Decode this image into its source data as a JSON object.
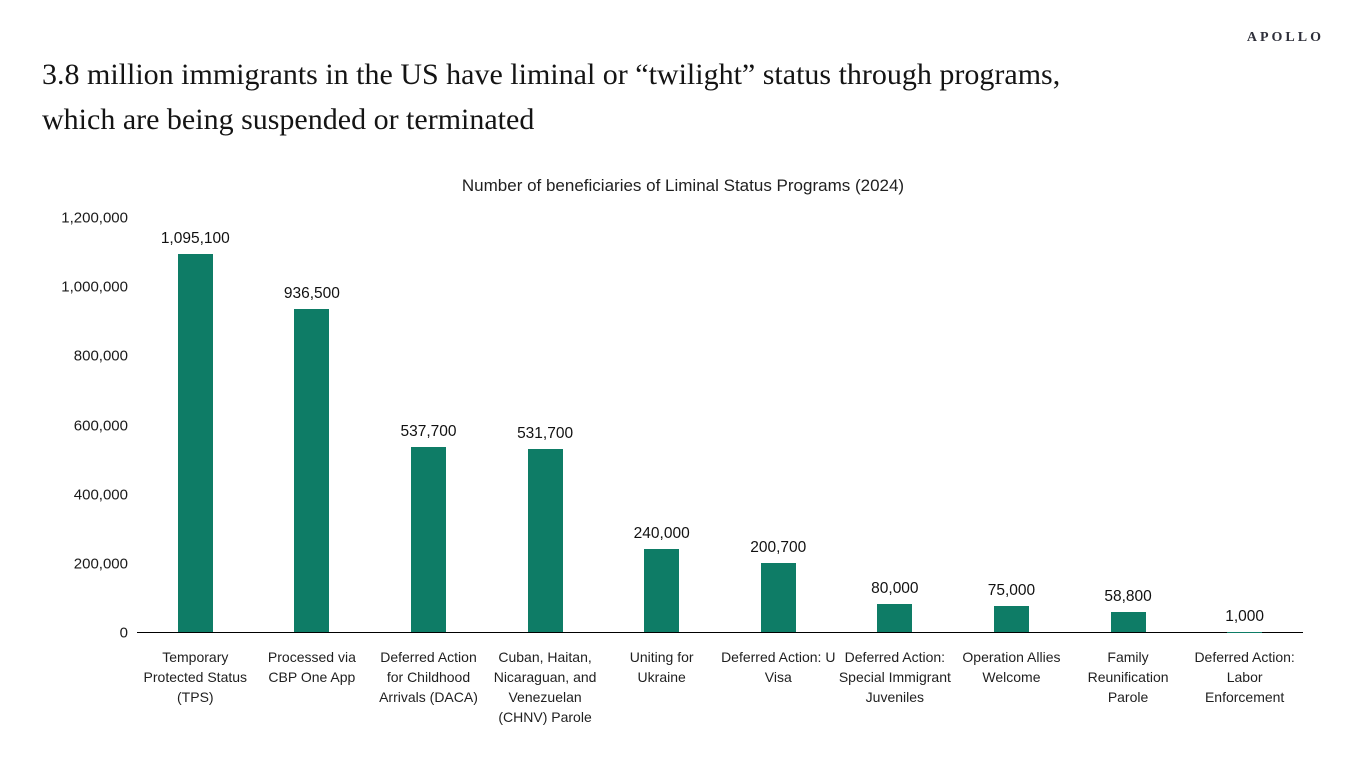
{
  "logo": "APOLLO",
  "headline": {
    "line1": "3.8 million immigrants in the US have liminal or “twilight” status through programs,",
    "line2": "which are being suspended or terminated"
  },
  "chart_data": {
    "type": "bar",
    "title": "Number of beneficiaries of Liminal Status Programs (2024)",
    "categories": [
      "Temporary Protected Status (TPS)",
      "Processed via CBP One App",
      "Deferred Action for Childhood Arrivals (DACA)",
      "Cuban, Haitan, Nicaraguan, and Venezuelan (CHNV) Parole",
      "Uniting for Ukraine",
      "Deferred Action: U Visa",
      "Deferred Action: Special Immigrant Juveniles",
      "Operation Allies Welcome",
      "Family Reunification Parole",
      "Deferred Action: Labor Enforcement"
    ],
    "values": [
      1095100,
      936500,
      537700,
      531700,
      240000,
      200700,
      80000,
      75000,
      58800,
      1000
    ],
    "value_labels": [
      "1,095,100",
      "936,500",
      "537,700",
      "531,700",
      "240,000",
      "200,700",
      "80,000",
      "75,000",
      "58,800",
      "1,000"
    ],
    "y_ticks": [
      {
        "value": 1200000,
        "label": "1,200,000"
      },
      {
        "value": 1000000,
        "label": "1,000,000"
      },
      {
        "value": 800000,
        "label": "800,000"
      },
      {
        "value": 600000,
        "label": "600,000"
      },
      {
        "value": 400000,
        "label": "400,000"
      },
      {
        "value": 200000,
        "label": "200,000"
      },
      {
        "value": 0,
        "label": "0"
      }
    ],
    "ylim": [
      0,
      1200000
    ],
    "xlabel": "",
    "ylabel": "",
    "grid": false,
    "legend": "none",
    "data_labels_position": "above bars",
    "bar_color": "#0e7c66",
    "axis_line_color": "#000000"
  }
}
